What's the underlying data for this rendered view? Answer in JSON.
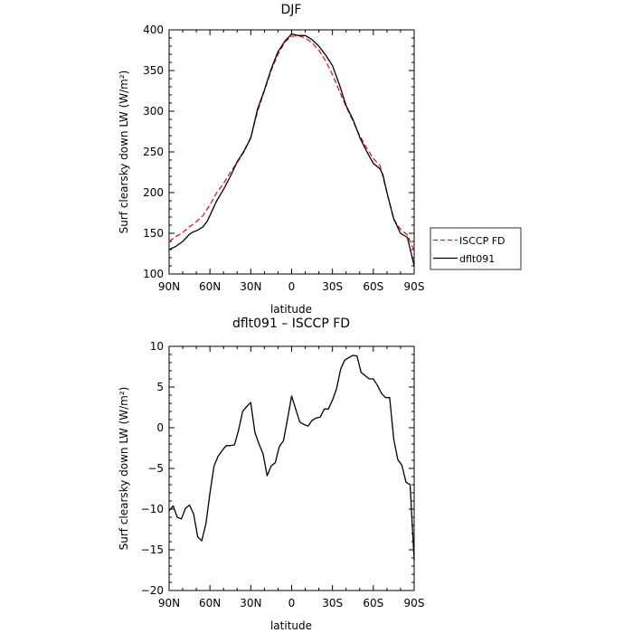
{
  "chart_data": [
    {
      "type": "line",
      "title": "DJF",
      "xlabel": "latitude",
      "ylabel": "Surf clearsky down LW (W/m²)",
      "xlim": [
        90,
        -90
      ],
      "ylim": [
        100,
        400
      ],
      "xticks": [
        90,
        60,
        30,
        0,
        -30,
        -60,
        -90
      ],
      "xtick_labels": [
        "90N",
        "60N",
        "30N",
        "0",
        "30S",
        "60S",
        "90S"
      ],
      "yticks": [
        100,
        150,
        200,
        250,
        300,
        350,
        400
      ],
      "ytick_labels": [
        "100",
        "150",
        "200",
        "250",
        "300",
        "350",
        "400"
      ],
      "grid": false,
      "legend_placement": "right",
      "series": [
        {
          "name": "ISCCP FD",
          "color": "#e41a1c",
          "dash": "dashed",
          "x": [
            90,
            85,
            80,
            75,
            70,
            65,
            60,
            55,
            50,
            45,
            40,
            35,
            30,
            25,
            20,
            15,
            10,
            5,
            0,
            -5,
            -10,
            -15,
            -20,
            -25,
            -30,
            -35,
            -40,
            -45,
            -50,
            -55,
            -60,
            -65,
            -70,
            -75,
            -80,
            -85,
            -90
          ],
          "y": [
            140,
            146,
            151,
            158,
            164,
            172,
            185,
            200,
            211,
            225,
            237,
            250,
            268,
            300,
            325,
            350,
            370,
            385,
            392,
            393,
            390,
            384,
            375,
            362,
            345,
            325,
            306,
            288,
            270,
            255,
            242,
            233,
            200,
            167,
            155,
            148,
            128
          ]
        },
        {
          "name": "dflt091",
          "color": "#000000",
          "dash": "solid",
          "x": [
            90,
            85,
            80,
            75,
            72,
            70,
            65,
            62,
            60,
            55,
            50,
            45,
            40,
            35,
            30,
            25,
            20,
            15,
            10,
            5,
            0,
            -5,
            -10,
            -15,
            -20,
            -25,
            -30,
            -35,
            -40,
            -45,
            -50,
            -55,
            -60,
            -65,
            -67,
            -70,
            -75,
            -80,
            -85,
            -90
          ],
          "y": [
            130,
            134,
            140,
            149,
            152,
            153,
            158,
            165,
            172,
            190,
            204,
            220,
            238,
            251,
            267,
            303,
            326,
            352,
            373,
            386,
            395,
            393,
            393,
            388,
            380,
            369,
            356,
            333,
            307,
            290,
            268,
            251,
            236,
            229,
            222,
            200,
            168,
            150,
            145,
            110
          ]
        }
      ]
    },
    {
      "type": "line",
      "title": "dflt091 – ISCCP FD",
      "xlabel": "latitude",
      "ylabel": "Surf clearsky down LW (W/m²)",
      "xlim": [
        90,
        -90
      ],
      "ylim": [
        -20,
        10
      ],
      "xticks": [
        90,
        60,
        30,
        0,
        -30,
        -60,
        -90
      ],
      "xtick_labels": [
        "90N",
        "60N",
        "30N",
        "0",
        "30S",
        "60S",
        "90S"
      ],
      "yticks": [
        -20,
        -15,
        -10,
        -5,
        0,
        5,
        10
      ],
      "ytick_labels": [
        "−20",
        "−15",
        "−10",
        "−5",
        "0",
        "5",
        "10"
      ],
      "grid": false,
      "series": [
        {
          "color": "#000000",
          "dash": "solid",
          "x": [
            90,
            87,
            84,
            81,
            78,
            75,
            72,
            69,
            66,
            63,
            60,
            57,
            54,
            51,
            48,
            45,
            42,
            39,
            36,
            33,
            30,
            27,
            24,
            21,
            18,
            15,
            12,
            9,
            6,
            3,
            0,
            -3,
            -6,
            -9,
            -12,
            -15,
            -18,
            -21,
            -24,
            -27,
            -30,
            -33,
            -36,
            -39,
            -42,
            -45,
            -48,
            -51,
            -54,
            -57,
            -60,
            -63,
            -66,
            -69,
            -72,
            -75,
            -78,
            -81,
            -84,
            -87,
            -90
          ],
          "y": [
            -10.2,
            -9.6,
            -11,
            -11.2,
            -9.9,
            -9.5,
            -10.6,
            -13.4,
            -13.9,
            -11.8,
            -8,
            -4.7,
            -3.5,
            -2.8,
            -2.2,
            -2.2,
            -2.1,
            -0.3,
            2,
            2.6,
            3.1,
            -0.6,
            -2,
            -3.2,
            -5.9,
            -4.7,
            -4.3,
            -2.3,
            -1.6,
            1.1,
            3.9,
            2.3,
            0.7,
            0.4,
            0.2,
            0.9,
            1.2,
            1.3,
            2.3,
            2.3,
            3.4,
            4.8,
            7.2,
            8.3,
            8.6,
            8.9,
            8.8,
            6.8,
            6.4,
            6,
            6,
            5.2,
            4.2,
            3.7,
            3.7,
            -1.4,
            -3.9,
            -4.6,
            -6.7,
            -7,
            -16.3
          ]
        }
      ]
    }
  ]
}
